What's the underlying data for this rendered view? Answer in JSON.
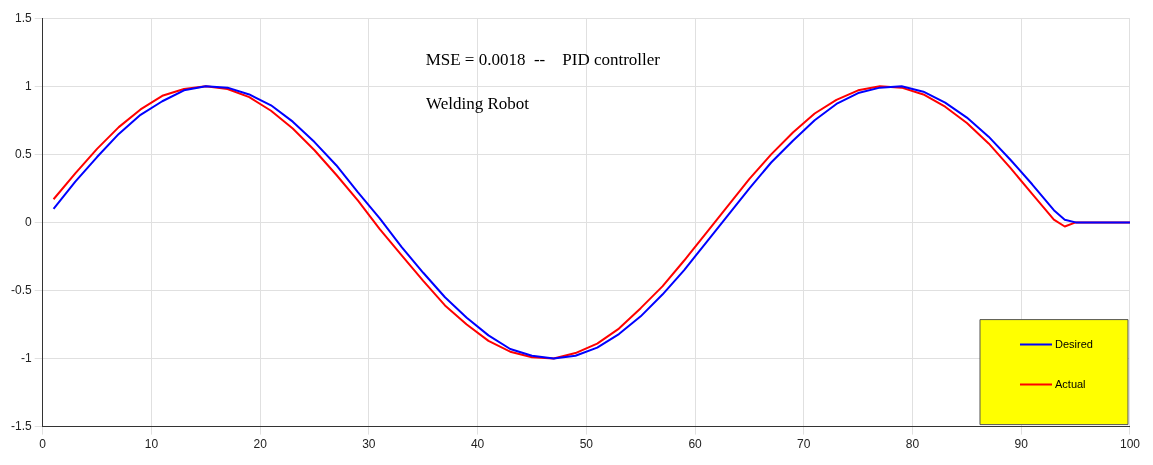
{
  "chart_data": {
    "type": "line",
    "annotations": [
      "MSE = 0.0018  --    PID controller",
      "Welding Robot"
    ],
    "x": [
      1,
      3,
      5,
      7,
      9,
      11,
      13,
      15,
      17,
      19,
      21,
      23,
      25,
      27,
      29,
      31,
      33,
      35,
      37,
      39,
      41,
      43,
      45,
      47,
      49,
      51,
      53,
      55,
      57,
      59,
      61,
      63,
      65,
      67,
      69,
      71,
      73,
      75,
      77,
      79,
      81,
      83,
      85,
      87,
      89,
      91,
      93,
      94,
      95,
      100
    ],
    "series": [
      {
        "name": "Desired",
        "color": "#0000ff",
        "values": [
          0.1,
          0.3,
          0.48,
          0.65,
          0.79,
          0.89,
          0.97,
          1.0,
          0.99,
          0.94,
          0.86,
          0.74,
          0.59,
          0.42,
          0.22,
          0.03,
          -0.18,
          -0.37,
          -0.55,
          -0.7,
          -0.83,
          -0.93,
          -0.98,
          -1.0,
          -0.98,
          -0.92,
          -0.82,
          -0.69,
          -0.53,
          -0.35,
          -0.15,
          0.05,
          0.25,
          0.44,
          0.6,
          0.75,
          0.87,
          0.95,
          0.99,
          1.0,
          0.96,
          0.88,
          0.77,
          0.63,
          0.46,
          0.28,
          0.09,
          0.02,
          0,
          0
        ]
      },
      {
        "name": "Actual",
        "color": "#ff0000",
        "values": [
          0.17,
          0.36,
          0.54,
          0.7,
          0.83,
          0.93,
          0.98,
          1.0,
          0.98,
          0.92,
          0.82,
          0.69,
          0.53,
          0.35,
          0.16,
          -0.05,
          -0.24,
          -0.43,
          -0.61,
          -0.75,
          -0.87,
          -0.95,
          -0.99,
          -1.0,
          -0.96,
          -0.89,
          -0.78,
          -0.63,
          -0.47,
          -0.28,
          -0.08,
          0.12,
          0.32,
          0.5,
          0.66,
          0.8,
          0.9,
          0.97,
          1.0,
          0.99,
          0.94,
          0.85,
          0.73,
          0.58,
          0.4,
          0.21,
          0.02,
          -0.03,
          0,
          0
        ]
      }
    ],
    "xlim": [
      0,
      100
    ],
    "xticks": [
      0,
      10,
      20,
      30,
      40,
      50,
      60,
      70,
      80,
      90,
      100
    ],
    "ylim": [
      -1.5,
      1.5
    ],
    "yticks": [
      -1.5,
      -1,
      -0.5,
      0,
      0.5,
      1,
      1.5
    ],
    "grid": true,
    "legend": "bottom right",
    "marker": "none",
    "line_style": "solid"
  }
}
